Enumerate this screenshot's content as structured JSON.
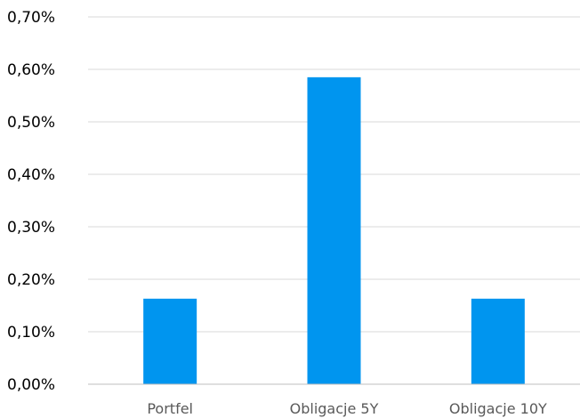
{
  "chart_data": {
    "type": "bar",
    "categories": [
      "Portfel",
      "Obligacje 5Y",
      "Obligacje 10Y"
    ],
    "values": [
      0.163,
      0.585,
      0.163
    ],
    "ylim": [
      0,
      0.7
    ],
    "yticks": [
      0,
      0.1,
      0.2,
      0.3,
      0.4,
      0.5,
      0.6,
      0.7
    ],
    "ytick_labels": [
      "0,00%",
      "0,10%",
      "0,20%",
      "0,30%",
      "0,40%",
      "0,50%",
      "0,60%",
      "0,70%"
    ],
    "value_unit": "percent",
    "grid": true,
    "legend": "none",
    "bar_color": "#0095ef"
  }
}
